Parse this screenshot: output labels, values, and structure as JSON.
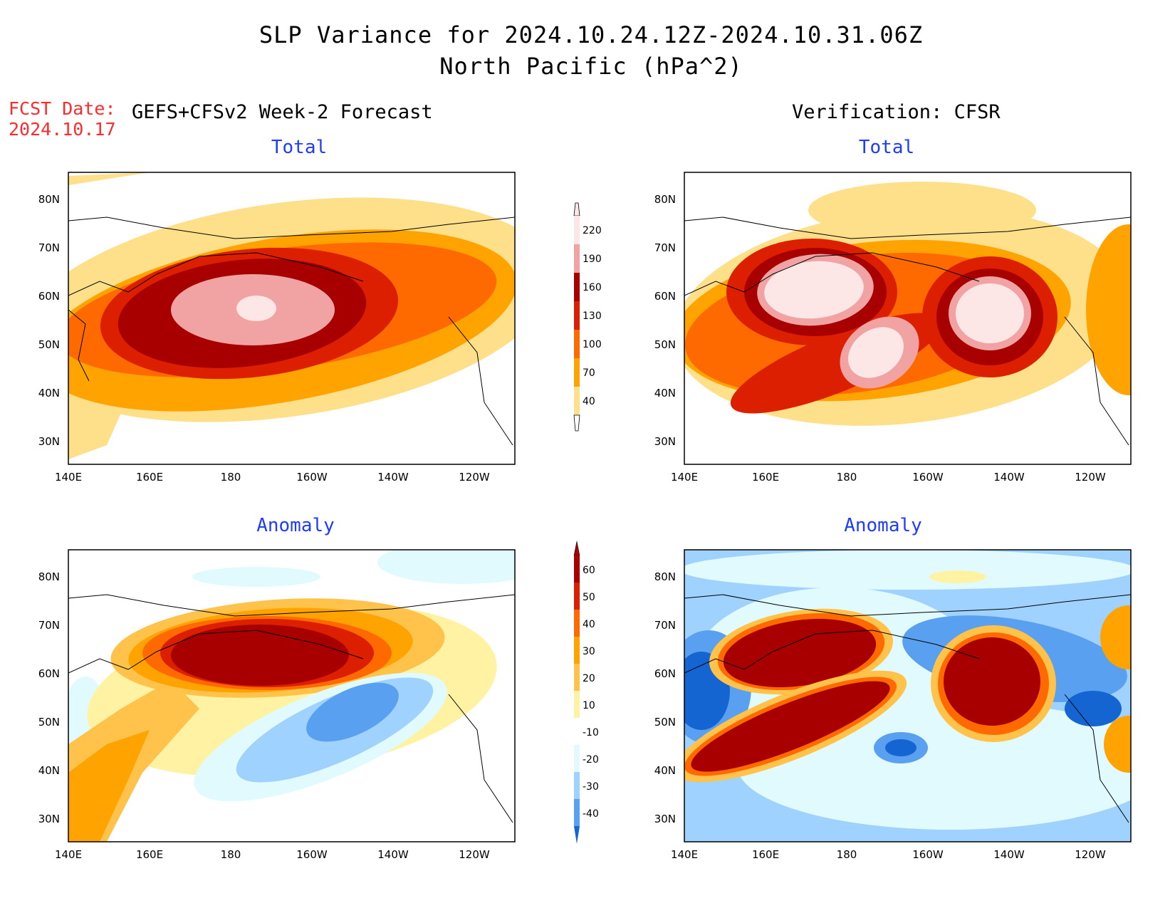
{
  "title": {
    "line1": "SLP Variance for 2024.10.24.12Z-2024.10.31.06Z",
    "line2": "North Pacific (hPa^2)"
  },
  "fcst": {
    "label": "FCST Date:",
    "date": "2024.10.17"
  },
  "left_header": "GEFS+CFSv2 Week-2 Forecast",
  "right_header": "Verification: CFSR",
  "panel_titles": {
    "tl": "Total",
    "tr": "Total",
    "bl": "Anomaly",
    "br": "Anomaly"
  },
  "lat_labels": [
    "80N",
    "70N",
    "60N",
    "50N",
    "40N",
    "30N"
  ],
  "lon_labels": [
    "140E",
    "160E",
    "180",
    "160W",
    "140W",
    "120W"
  ],
  "colorbar_total": {
    "labels": [
      "220",
      "190",
      "160",
      "130",
      "100",
      "70",
      "40"
    ],
    "colors": [
      "#fde6e6",
      "#f1a3a3",
      "#a80000",
      "#dc1f00",
      "#ff6a00",
      "#ffa300",
      "#fee08a"
    ]
  },
  "colorbar_anom": {
    "labels": [
      "60",
      "50",
      "40",
      "30",
      "20",
      "10",
      "-10",
      "-20",
      "-30",
      "-40"
    ],
    "colors": [
      "#a80000",
      "#dc1f00",
      "#ff6a00",
      "#ffa300",
      "#ffc24a",
      "#fff3a3",
      "#ffffff",
      "#e1fafe",
      "#a0d2ff",
      "#5aa0f0",
      "#1464d2"
    ]
  }
}
